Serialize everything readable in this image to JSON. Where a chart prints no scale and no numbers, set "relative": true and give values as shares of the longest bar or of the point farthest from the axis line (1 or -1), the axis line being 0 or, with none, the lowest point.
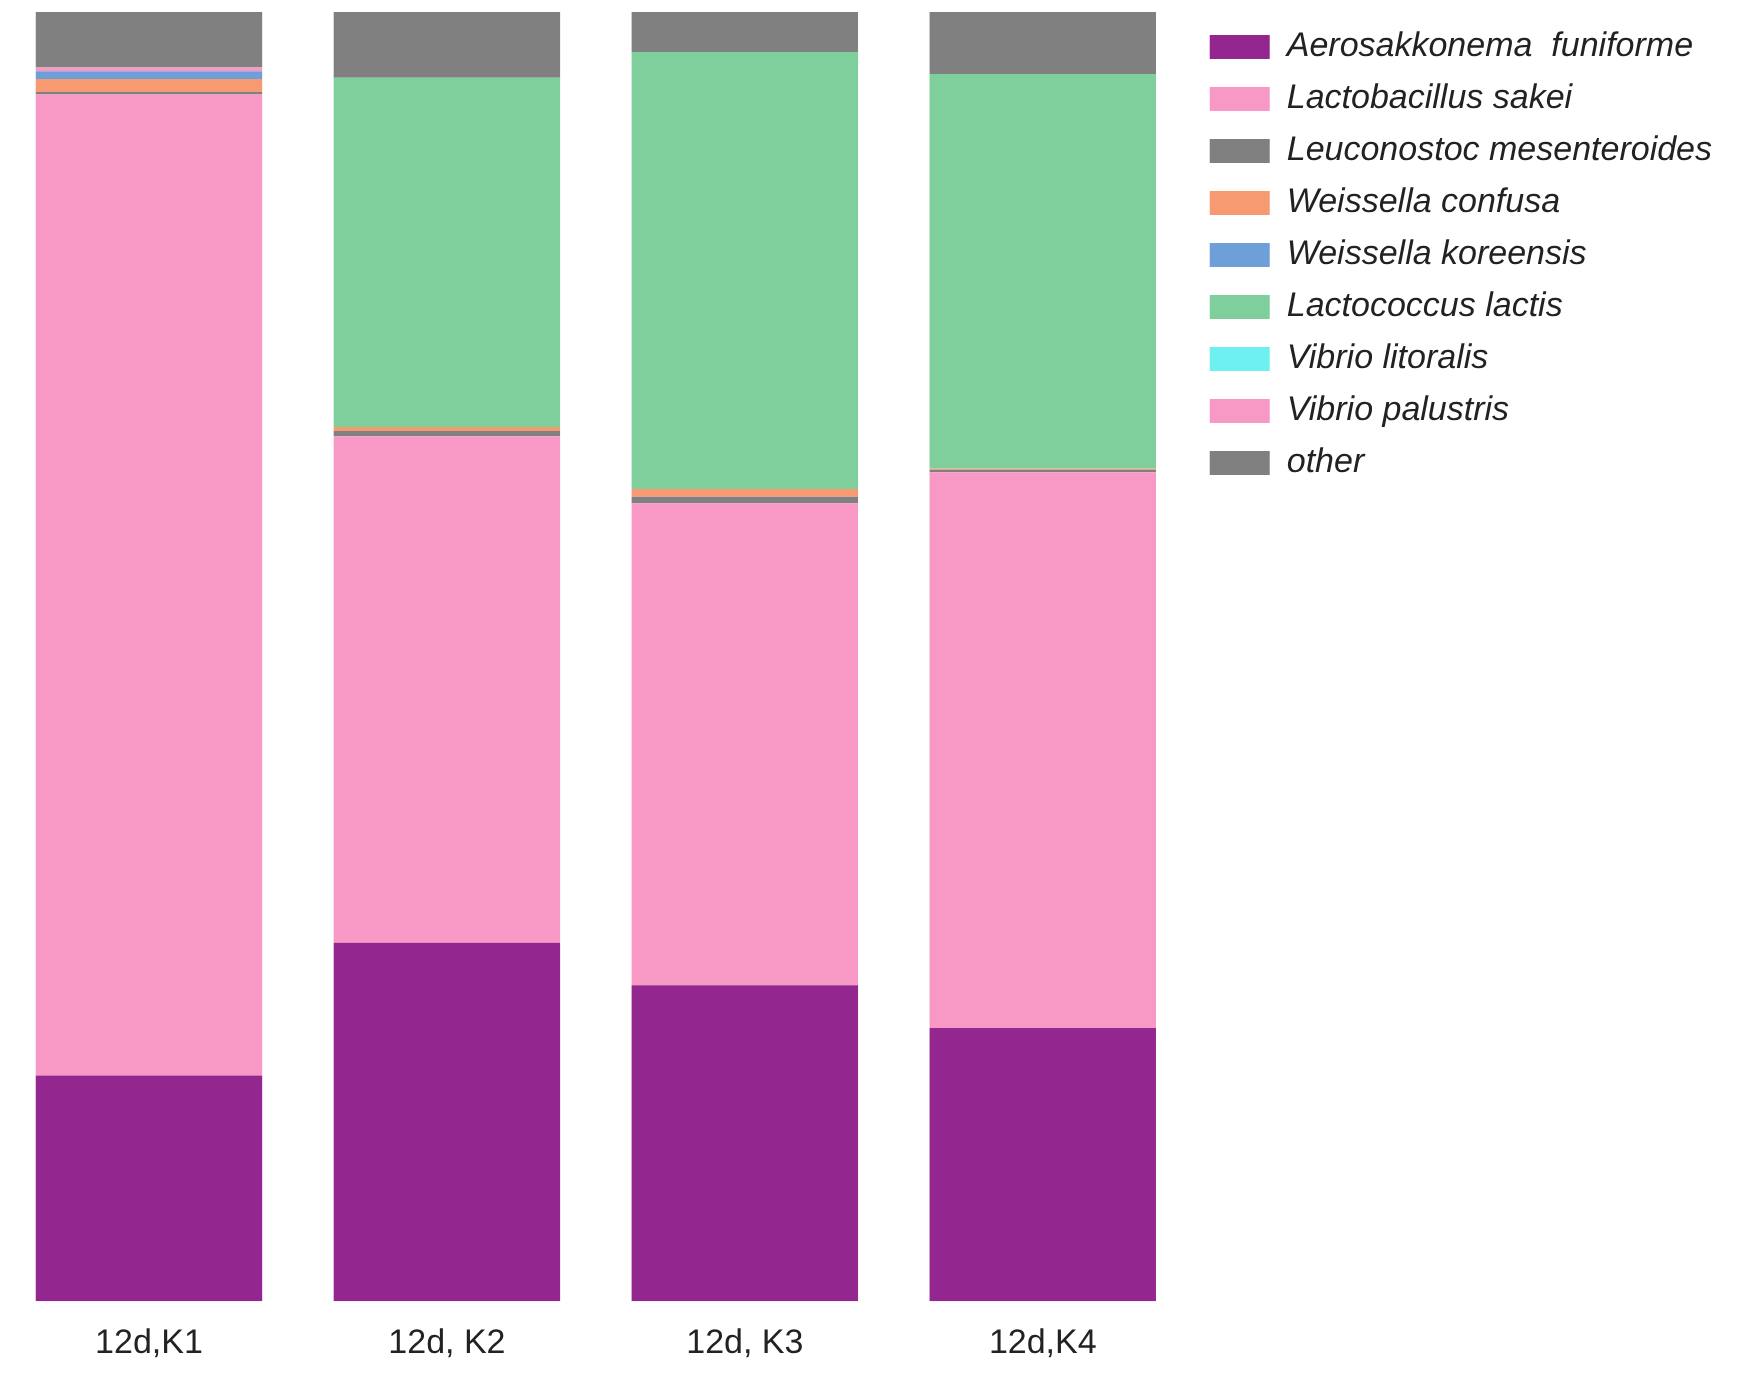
{
  "chart_data": {
    "type": "bar",
    "stacked": true,
    "relative": true,
    "legend": "top right",
    "categories": [
      "12d,K1",
      "12d, K2",
      "12d, K3",
      "12d,K4"
    ],
    "series": [
      {
        "name": "Aerosakkonema  funiforme",
        "color": "#93268f",
        "values": [
          0.175,
          0.278,
          0.245,
          0.212
        ]
      },
      {
        "name": "Lactobacillus sakei",
        "color": "#f799c4",
        "values": [
          0.761,
          0.393,
          0.374,
          0.431
        ]
      },
      {
        "name": "Leuconostoc mesenteroides",
        "color": "#808080",
        "values": [
          0.002,
          0.004,
          0.005,
          0.002
        ]
      },
      {
        "name": "Weissella confusa",
        "color": "#f79a72",
        "values": [
          0.01,
          0.003,
          0.006,
          0.001
        ]
      },
      {
        "name": "Weissella koreensis",
        "color": "#6f9fd8",
        "values": [
          0.006,
          0,
          0,
          0
        ]
      },
      {
        "name": "Lactococcus lactis",
        "color": "#7fcf9c",
        "values": [
          0,
          0.271,
          0.339,
          0.306
        ]
      },
      {
        "name": "Vibrio litoralis",
        "color": "#6ff0f0",
        "values": [
          0,
          0,
          0,
          0
        ]
      },
      {
        "name": "Vibrio palustris",
        "color": "#f799c4",
        "values": [
          0.003,
          0,
          0,
          0
        ]
      },
      {
        "name": "other",
        "color": "#808080",
        "values": [
          0.043,
          0.051,
          0.031,
          0.048
        ]
      }
    ]
  }
}
